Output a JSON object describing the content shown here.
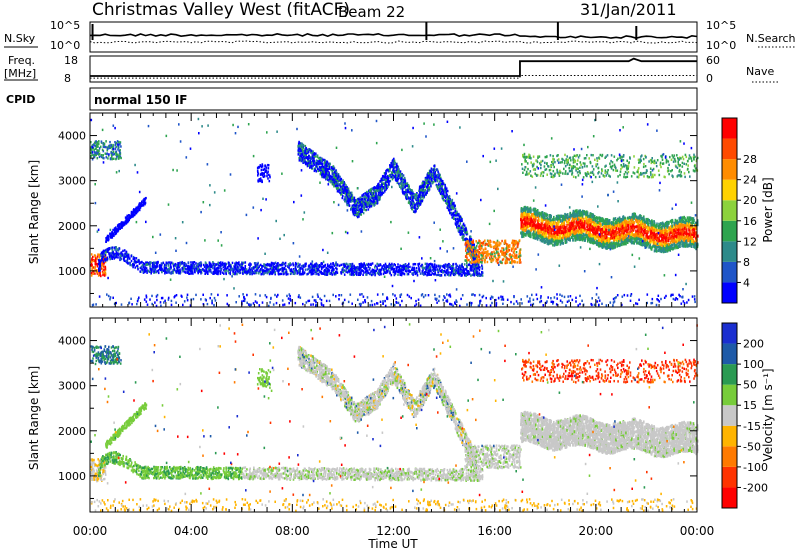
{
  "header": {
    "title": "Christmas Valley West (fitACF)",
    "beam": "Beam 22",
    "date": "31/Jan/2011"
  },
  "status_panels": {
    "nsky_label": "N.Sky",
    "nsky_ticks": [
      "10^5",
      "10^0"
    ],
    "nsearch_label": "N.Search",
    "nsearch_ticks": [
      "10^5",
      "10^0"
    ],
    "freq_label_line1": "Freq.",
    "freq_label_line2": "[MHz]",
    "freq_ticks": [
      "18",
      "8"
    ],
    "nave_label": "Nave",
    "nave_ticks": [
      "60",
      "0"
    ],
    "cpid_label": "CPID",
    "cpid_value": "normal 150 IF"
  },
  "chart_data": [
    {
      "type": "heatmap",
      "name": "power-panel",
      "ylabel": "Slant Range [km]",
      "yticks": [
        1000,
        2000,
        3000,
        4000
      ],
      "ylim": [
        200,
        4500
      ],
      "xlim_hours": [
        0,
        24
      ],
      "colorbar": {
        "label": "Power [dB]",
        "ticks": [
          4,
          8,
          12,
          16,
          20,
          24,
          28
        ],
        "colors": [
          "#0000ff",
          "#1f55c8",
          "#2d8a8a",
          "#2ea44f",
          "#8cd23c",
          "#ffd200",
          "#ff8c00",
          "#ff4a00",
          "#ff0000"
        ]
      }
    },
    {
      "type": "heatmap",
      "name": "velocity-panel",
      "ylabel": "Slant Range [km]",
      "yticks": [
        1000,
        2000,
        3000,
        4000
      ],
      "ylim": [
        200,
        4500
      ],
      "xlim_hours": [
        0,
        24
      ],
      "colorbar": {
        "label": "Velocity [m s⁻¹]",
        "ticks": [
          200,
          100,
          50,
          15,
          -15,
          -50,
          -100,
          -200
        ],
        "colors": [
          "#1b2fd0",
          "#1e5aa8",
          "#2a9a52",
          "#77cc3a",
          "#c8c8c8",
          "#ffb400",
          "#ff7a00",
          "#ff3300",
          "#ff0000"
        ]
      }
    }
  ],
  "xaxis": {
    "label": "Time UT",
    "ticks": [
      "00:00",
      "04:00",
      "08:00",
      "12:00",
      "16:00",
      "20:00",
      "00:00"
    ]
  }
}
